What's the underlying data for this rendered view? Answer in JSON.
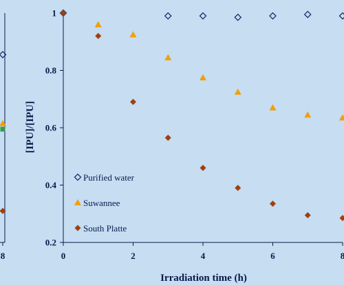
{
  "chart_data": {
    "type": "scatter",
    "xlabel": "Irradiation time (h)",
    "ylabel": "[IPU]/[IPU]",
    "xlim": [
      0,
      8
    ],
    "ylim": [
      0.2,
      1
    ],
    "x_ticks": [
      "0",
      "2",
      "4",
      "6",
      "8"
    ],
    "y_ticks": [
      "0.2",
      "0.4",
      "0.6",
      "0.8",
      "1"
    ],
    "legend_placement": "bottom-left",
    "series": [
      {
        "name": "Purified water",
        "marker": "diamond-open",
        "color": "#1f2d6b",
        "x": [
          0,
          3,
          4,
          5,
          6,
          7,
          8
        ],
        "y": [
          1.0,
          0.99,
          0.99,
          0.985,
          0.99,
          0.995,
          0.99
        ]
      },
      {
        "name": "Suwannee",
        "marker": "triangle",
        "color": "#f0a00a",
        "x": [
          1,
          2,
          3,
          4,
          5,
          6,
          7,
          8
        ],
        "y": [
          0.96,
          0.925,
          0.845,
          0.775,
          0.725,
          0.67,
          0.645,
          0.635
        ]
      },
      {
        "name": "South Platte",
        "marker": "diamond-filled",
        "color": "#a0400e",
        "x": [
          0,
          1,
          2,
          3,
          4,
          5,
          6,
          7,
          8
        ],
        "y": [
          1.0,
          0.92,
          0.69,
          0.565,
          0.46,
          0.39,
          0.335,
          0.295,
          0.285
        ]
      }
    ],
    "left_panel_partial": {
      "x_tick": "8",
      "points": [
        {
          "y": 0.855,
          "marker": "diamond-open",
          "color": "#1f2d6b"
        },
        {
          "y": 0.615,
          "marker": "triangle",
          "color": "#f0a00a"
        },
        {
          "y": 0.595,
          "marker": "square",
          "color": "#2e9e4a"
        },
        {
          "y": 0.31,
          "marker": "diamond-filled",
          "color": "#a0400e"
        }
      ]
    }
  }
}
